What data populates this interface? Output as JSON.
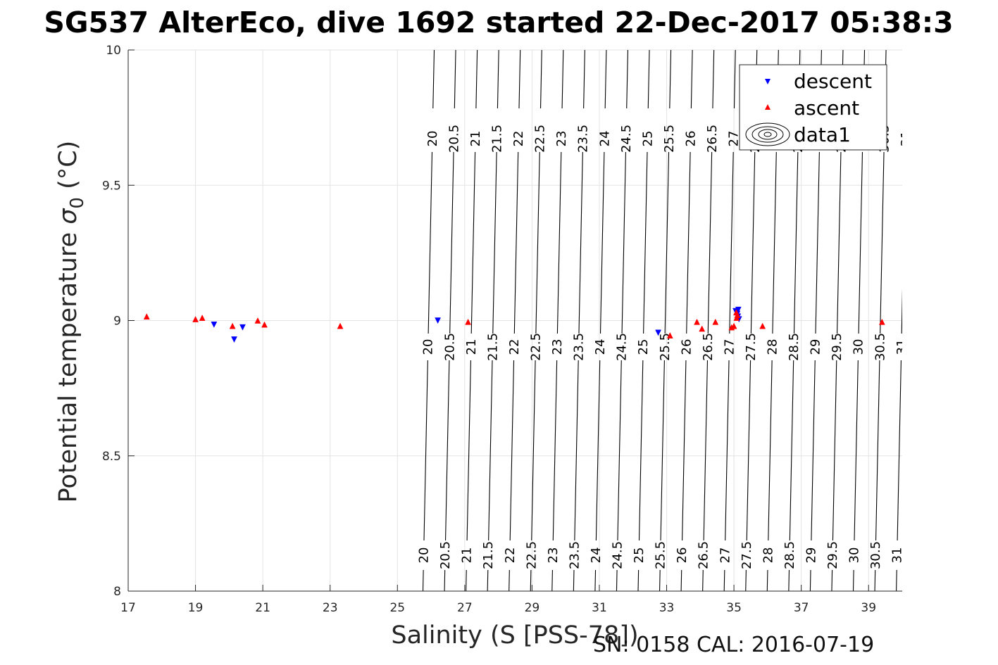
{
  "chart_data": {
    "type": "scatter",
    "title": "SG537 AlterEco, dive 1692 started 22-Dec-2017 05:38:3",
    "xlabel": "Salinity (S [PSS-78])",
    "ylabel_main": "Potential temperature ",
    "ylabel_sigma": "σ",
    "ylabel_sub": "0",
    "ylabel_unit": " (°C)",
    "xlim": [
      17,
      40
    ],
    "ylim": [
      8,
      10
    ],
    "xticks": [
      "17",
      "19",
      "21",
      "23",
      "25",
      "27",
      "29",
      "31",
      "33",
      "35",
      "37",
      "39"
    ],
    "yticks": [
      "8",
      "8.5",
      "9",
      "9.5",
      "10"
    ],
    "grid": true,
    "legend_position": "top-right",
    "legend": [
      "descent",
      "ascent",
      "data1"
    ],
    "series": [
      {
        "name": "descent",
        "color": "#0000ff",
        "marker": "triangle-down",
        "points": [
          [
            19.55,
            8.985
          ],
          [
            20.15,
            8.93
          ],
          [
            20.4,
            8.975
          ],
          [
            26.2,
            9.0
          ],
          [
            32.75,
            8.955
          ],
          [
            35.05,
            9.035
          ],
          [
            35.1,
            9.025
          ],
          [
            35.12,
            9.015
          ],
          [
            35.15,
            9.005
          ],
          [
            35.13,
            9.04
          ]
        ]
      },
      {
        "name": "ascent",
        "color": "#ff0000",
        "marker": "triangle-up",
        "points": [
          [
            17.55,
            9.015
          ],
          [
            19.0,
            9.005
          ],
          [
            19.2,
            9.01
          ],
          [
            20.1,
            8.98
          ],
          [
            20.85,
            9.0
          ],
          [
            21.05,
            8.985
          ],
          [
            23.3,
            8.98
          ],
          [
            27.1,
            8.995
          ],
          [
            33.1,
            8.945
          ],
          [
            33.9,
            8.995
          ],
          [
            34.05,
            8.97
          ],
          [
            34.45,
            8.995
          ],
          [
            34.93,
            8.975
          ],
          [
            35.0,
            8.98
          ],
          [
            35.07,
            9.03
          ],
          [
            35.1,
            9.02
          ],
          [
            35.08,
            9.01
          ],
          [
            35.85,
            8.98
          ],
          [
            39.4,
            8.995
          ]
        ]
      }
    ],
    "contour_levels": [
      "20",
      "20.5",
      "21",
      "21.5",
      "22",
      "22.5",
      "23",
      "23.5",
      "24",
      "24.5",
      "25",
      "25.5",
      "26",
      "26.5",
      "27",
      "27.5",
      "28",
      "28.5",
      "29",
      "29.5",
      "30",
      "30.5",
      "31"
    ],
    "footnote": "SN: 0158  CAL: 2016-07-19"
  }
}
